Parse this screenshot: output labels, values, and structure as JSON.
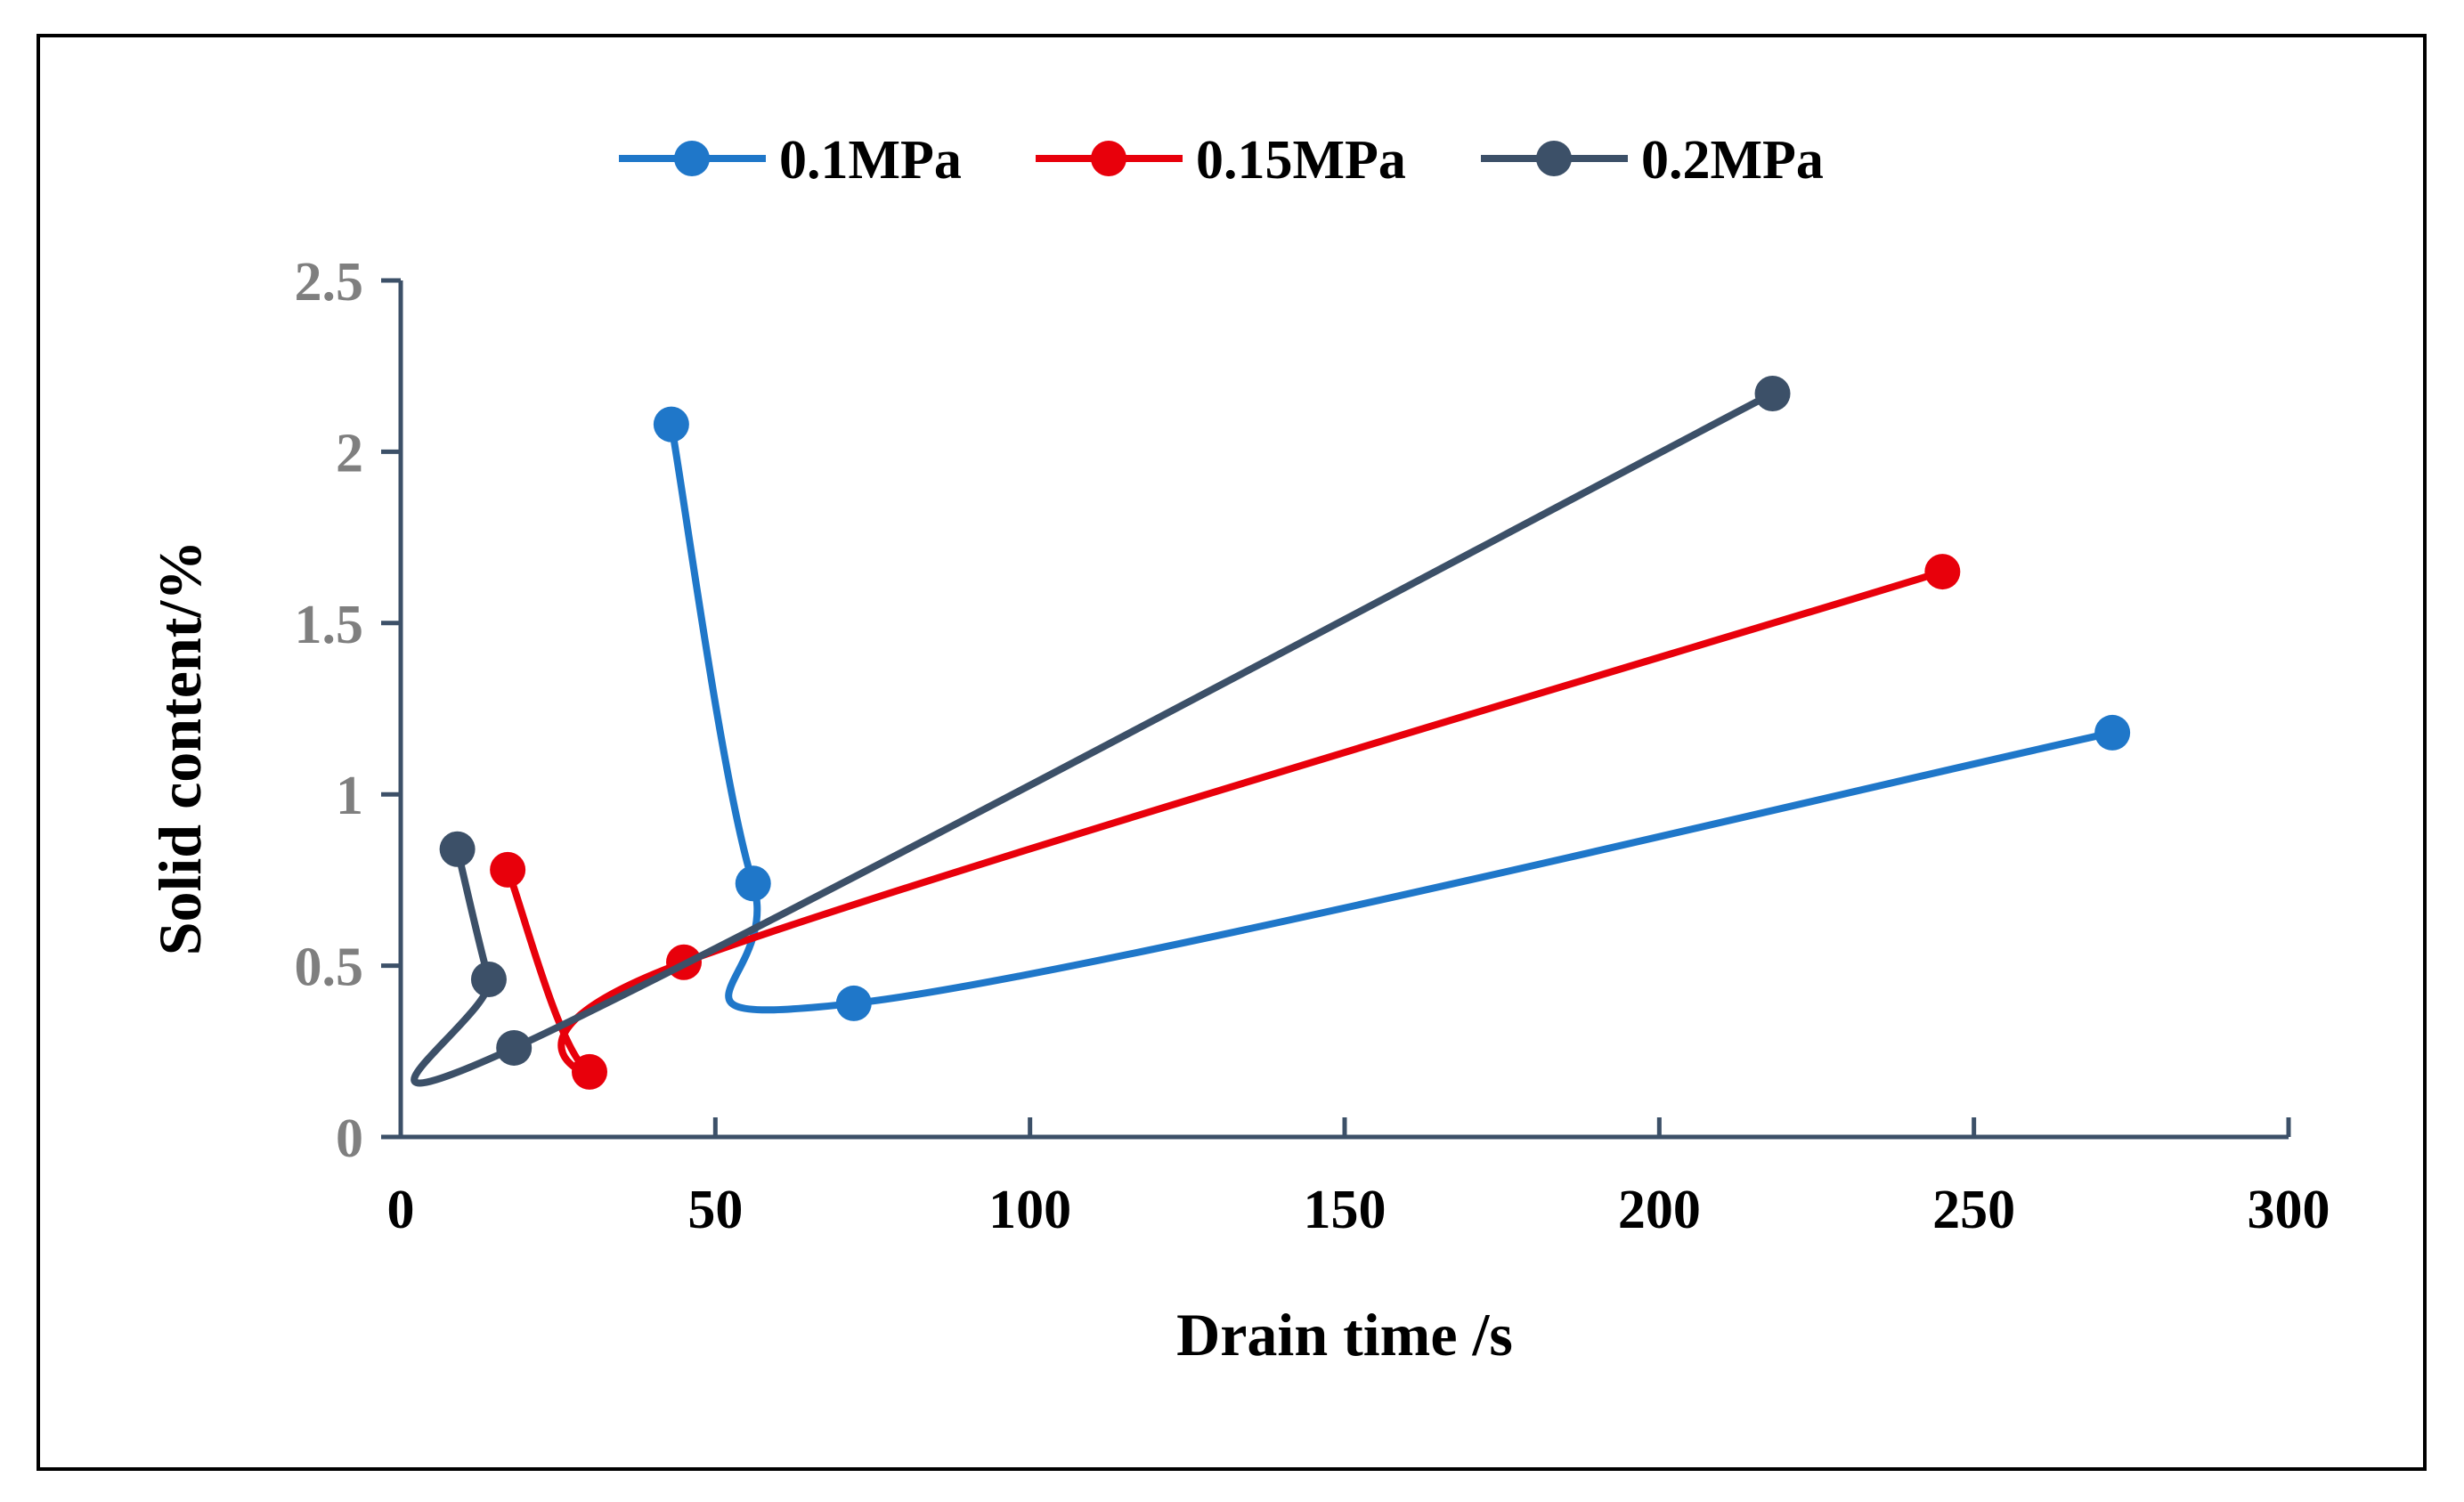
{
  "chart_data": {
    "type": "line",
    "smooth": true,
    "title": "",
    "xlabel": "Drain time /s",
    "ylabel": "Solid content/%",
    "xlim": [
      0,
      300
    ],
    "ylim": [
      0,
      2.5
    ],
    "xticks": [
      0,
      50,
      100,
      150,
      200,
      250,
      300
    ],
    "xtick_labels": [
      "0",
      "50",
      "100",
      "150",
      "200",
      "250",
      "300"
    ],
    "yticks": [
      0,
      0.5,
      1,
      1.5,
      2,
      2.5
    ],
    "ytick_labels": [
      "0",
      "0.5",
      "1",
      "1.5",
      "2",
      "2.5"
    ],
    "grid": false,
    "legend_position": "top-center",
    "series": [
      {
        "name": "0.1MPa",
        "color": "#1F77C9",
        "x": [
          43,
          56,
          72,
          272
        ],
        "y": [
          2.08,
          0.74,
          0.39,
          1.18
        ]
      },
      {
        "name": "0.15MPa",
        "color": "#E8000B",
        "x": [
          17,
          30,
          45,
          245
        ],
        "y": [
          0.78,
          0.19,
          0.51,
          1.65
        ]
      },
      {
        "name": "0.2MPa",
        "color": "#3C5068",
        "x": [
          9,
          14,
          18,
          218
        ],
        "y": [
          0.84,
          0.46,
          0.26,
          2.17
        ]
      }
    ],
    "colors": {
      "axis": "#3C5068",
      "ytick_text": "#7F7F7F",
      "xtick_text": "#000000",
      "frame": "#000000"
    }
  }
}
